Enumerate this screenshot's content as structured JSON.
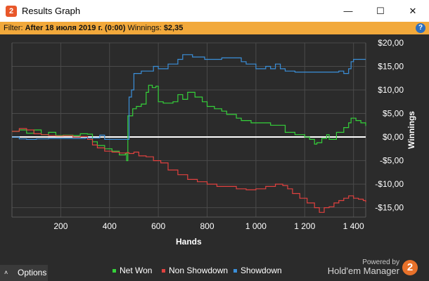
{
  "window": {
    "app_icon": "2",
    "title": "Results Graph",
    "minimize_glyph": "—",
    "maximize_glyph": "☐",
    "close_glyph": "✕"
  },
  "filter": {
    "prefix": "Filter:",
    "value": "After 18 июля 2019 г. (0:00)",
    "winnings_label": "Winnings:",
    "winnings_value": "$2,35",
    "help_glyph": "?"
  },
  "chart_data": {
    "type": "line",
    "xlabel": "Hands",
    "ylabel": "Winnings",
    "xlim": [
      0,
      1450
    ],
    "ylim": [
      -17,
      20
    ],
    "x_ticks": [
      200,
      400,
      600,
      800,
      1000,
      1200,
      1400
    ],
    "x_tick_labels": [
      "200",
      "400",
      "600",
      "800",
      "1 000",
      "1 200",
      "1 400"
    ],
    "y_ticks": [
      20,
      15,
      10,
      5,
      0,
      -5,
      -10,
      -15
    ],
    "y_tick_labels": [
      "$20,00",
      "$15,00",
      "$10,00",
      "$5,00",
      "$0,00",
      "-$5,00",
      "-$10,00",
      "-$15,00"
    ],
    "grid": true,
    "legend_position": "bottom",
    "series": [
      {
        "name": "Net Won",
        "color": "#35d13a",
        "points": [
          [
            0,
            1.2
          ],
          [
            30,
            1.5
          ],
          [
            60,
            0.8
          ],
          [
            90,
            1.5
          ],
          [
            120,
            0.5
          ],
          [
            150,
            1
          ],
          [
            180,
            0.3
          ],
          [
            210,
            0.4
          ],
          [
            250,
            0.3
          ],
          [
            280,
            0.7
          ],
          [
            310,
            0.6
          ],
          [
            330,
            -1
          ],
          [
            350,
            -1.8
          ],
          [
            380,
            -2.5
          ],
          [
            410,
            -3
          ],
          [
            440,
            -3.8
          ],
          [
            465,
            -3.5
          ],
          [
            470,
            -5
          ],
          [
            475,
            4.5
          ],
          [
            495,
            6
          ],
          [
            510,
            6.5
          ],
          [
            530,
            7
          ],
          [
            550,
            9.5
          ],
          [
            560,
            11
          ],
          [
            575,
            10.5
          ],
          [
            590,
            10.8
          ],
          [
            600,
            7.5
          ],
          [
            620,
            7.2
          ],
          [
            660,
            7.5
          ],
          [
            680,
            9
          ],
          [
            700,
            8
          ],
          [
            720,
            9.5
          ],
          [
            750,
            8.5
          ],
          [
            780,
            7.5
          ],
          [
            800,
            6.5
          ],
          [
            830,
            6
          ],
          [
            860,
            5.5
          ],
          [
            880,
            4.8
          ],
          [
            920,
            4
          ],
          [
            940,
            3.5
          ],
          [
            980,
            3
          ],
          [
            1020,
            3
          ],
          [
            1060,
            2.5
          ],
          [
            1090,
            2.5
          ],
          [
            1120,
            1
          ],
          [
            1160,
            0.5
          ],
          [
            1200,
            0
          ],
          [
            1220,
            -0.5
          ],
          [
            1240,
            -1.5
          ],
          [
            1250,
            -1.2
          ],
          [
            1270,
            -0.3
          ],
          [
            1290,
            0.5
          ],
          [
            1300,
            -0.5
          ],
          [
            1330,
            1
          ],
          [
            1360,
            2
          ],
          [
            1380,
            3
          ],
          [
            1390,
            4
          ],
          [
            1410,
            3.5
          ],
          [
            1430,
            3
          ],
          [
            1450,
            2.35
          ]
        ]
      },
      {
        "name": "Non Showdown",
        "color": "#e0413f",
        "points": [
          [
            0,
            1.2
          ],
          [
            30,
            1.8
          ],
          [
            60,
            1.5
          ],
          [
            90,
            0.7
          ],
          [
            120,
            0.5
          ],
          [
            150,
            0.3
          ],
          [
            180,
            0.2
          ],
          [
            210,
            0.3
          ],
          [
            250,
            0
          ],
          [
            280,
            0.1
          ],
          [
            310,
            -0.5
          ],
          [
            330,
            -1.7
          ],
          [
            350,
            -2.3
          ],
          [
            380,
            -3
          ],
          [
            410,
            -3.2
          ],
          [
            440,
            -3.4
          ],
          [
            470,
            -3.3
          ],
          [
            480,
            -3.5
          ],
          [
            500,
            -3.2
          ],
          [
            520,
            -4
          ],
          [
            550,
            -4.2
          ],
          [
            580,
            -5
          ],
          [
            610,
            -5.5
          ],
          [
            640,
            -7
          ],
          [
            680,
            -8
          ],
          [
            720,
            -9
          ],
          [
            760,
            -9.5
          ],
          [
            800,
            -10
          ],
          [
            840,
            -10.5
          ],
          [
            880,
            -10.5
          ],
          [
            920,
            -11
          ],
          [
            960,
            -11.2
          ],
          [
            1000,
            -11
          ],
          [
            1040,
            -10.5
          ],
          [
            1080,
            -10
          ],
          [
            1110,
            -10.3
          ],
          [
            1130,
            -11
          ],
          [
            1150,
            -12
          ],
          [
            1180,
            -13
          ],
          [
            1210,
            -14
          ],
          [
            1240,
            -15
          ],
          [
            1260,
            -16
          ],
          [
            1280,
            -15
          ],
          [
            1300,
            -14.8
          ],
          [
            1320,
            -14
          ],
          [
            1340,
            -13.5
          ],
          [
            1360,
            -13
          ],
          [
            1380,
            -12.5
          ],
          [
            1400,
            -13
          ],
          [
            1420,
            -13.2
          ],
          [
            1440,
            -13.5
          ],
          [
            1450,
            -13.8
          ]
        ]
      },
      {
        "name": "Showdown",
        "color": "#3b8fd9",
        "points": [
          [
            0,
            0
          ],
          [
            30,
            -0.4
          ],
          [
            60,
            -0.5
          ],
          [
            100,
            -0.4
          ],
          [
            150,
            -0.3
          ],
          [
            200,
            -0.3
          ],
          [
            250,
            -0.3
          ],
          [
            300,
            -0.2
          ],
          [
            340,
            -0.2
          ],
          [
            360,
            0.4
          ],
          [
            380,
            -0.5
          ],
          [
            420,
            -0.5
          ],
          [
            460,
            -0.5
          ],
          [
            475,
            -0.5
          ],
          [
            480,
            8.5
          ],
          [
            490,
            10
          ],
          [
            500,
            13.5
          ],
          [
            530,
            14
          ],
          [
            580,
            15
          ],
          [
            600,
            14.5
          ],
          [
            640,
            15.5
          ],
          [
            680,
            16.5
          ],
          [
            700,
            17.5
          ],
          [
            740,
            17
          ],
          [
            790,
            16.5
          ],
          [
            860,
            16.8
          ],
          [
            940,
            16
          ],
          [
            960,
            15.5
          ],
          [
            1000,
            14.5
          ],
          [
            1040,
            15
          ],
          [
            1060,
            14.5
          ],
          [
            1080,
            15.5
          ],
          [
            1100,
            14.5
          ],
          [
            1120,
            14
          ],
          [
            1160,
            13.8
          ],
          [
            1200,
            13.8
          ],
          [
            1240,
            13.8
          ],
          [
            1280,
            13.8
          ],
          [
            1310,
            13.8
          ],
          [
            1340,
            14
          ],
          [
            1360,
            13.5
          ],
          [
            1380,
            14.5
          ],
          [
            1390,
            16
          ],
          [
            1400,
            16.5
          ],
          [
            1450,
            16.5
          ]
        ]
      }
    ]
  },
  "footer": {
    "options_chevron": "˄",
    "options_label": "Options",
    "powered_by": "Powered by",
    "brand_name": "Hold'em Manager",
    "brand_logo": "2"
  }
}
